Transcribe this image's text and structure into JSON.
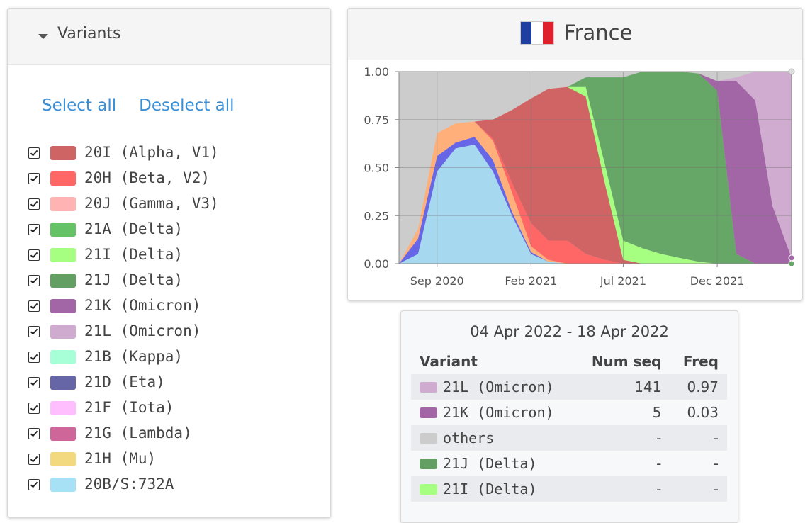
{
  "variants_panel": {
    "title": "Variants",
    "select_all": "Select all",
    "deselect_all": "Deselect all",
    "items": [
      {
        "label": "20I (Alpha, V1)",
        "color": "#cf6464",
        "checked": true
      },
      {
        "label": "20H (Beta, V2)",
        "color": "#ff6666",
        "checked": true
      },
      {
        "label": "20J (Gamma, V3)",
        "color": "#ffb3b3",
        "checked": true
      },
      {
        "label": "21A (Delta)",
        "color": "#66c266",
        "checked": true
      },
      {
        "label": "21I (Delta)",
        "color": "#a6ff80",
        "checked": true
      },
      {
        "label": "21J (Delta)",
        "color": "#639f63",
        "checked": true
      },
      {
        "label": "21K (Omicron)",
        "color": "#a266a6",
        "checked": true
      },
      {
        "label": "21L (Omicron)",
        "color": "#cfabcf",
        "checked": true
      },
      {
        "label": "21B (Kappa)",
        "color": "#a6ffd6",
        "checked": true
      },
      {
        "label": "21D (Eta)",
        "color": "#6666a6",
        "checked": true
      },
      {
        "label": "21F (Iota)",
        "color": "#ffbfff",
        "checked": true
      },
      {
        "label": "21G (Lambda)",
        "color": "#cf6699",
        "checked": true
      },
      {
        "label": "21H (Mu)",
        "color": "#f2d980",
        "checked": true
      },
      {
        "label": "20B/S:732A",
        "color": "#a6e1f5",
        "checked": true
      }
    ]
  },
  "chart_panel": {
    "country": "France",
    "flag_colors": [
      "#1f3fa0",
      "#ffffff",
      "#e0202a"
    ]
  },
  "chart_data": {
    "type": "area",
    "stacked": true,
    "normalized": true,
    "x_dates": [
      "2020-07-01",
      "2020-08-01",
      "2020-09-01",
      "2020-10-01",
      "2020-11-01",
      "2020-12-01",
      "2021-01-01",
      "2021-02-01",
      "2021-03-01",
      "2021-04-01",
      "2021-05-01",
      "2021-06-01",
      "2021-07-01",
      "2021-08-01",
      "2021-09-01",
      "2021-10-01",
      "2021-11-01",
      "2021-12-01",
      "2022-01-01",
      "2022-02-01",
      "2022-03-01",
      "2022-04-01"
    ],
    "x_ticks": [
      "Sep 2020",
      "Feb 2021",
      "Jul 2021",
      "Dec 2021"
    ],
    "y_ticks": [
      "0.00",
      "0.25",
      "0.50",
      "0.75",
      "1.00"
    ],
    "ylim": [
      0,
      1
    ],
    "grid": true,
    "background_color": "#cccccc",
    "series": [
      {
        "name": "20B/S:732A",
        "color": "#a6d8f0",
        "values": [
          0.0,
          0.05,
          0.48,
          0.6,
          0.62,
          0.48,
          0.25,
          0.05,
          0.01,
          0,
          0,
          0,
          0,
          0,
          0,
          0,
          0,
          0,
          0,
          0,
          0,
          0
        ]
      },
      {
        "name": "21D (Eta)",
        "color": "#6666e6",
        "values": [
          0.0,
          0.08,
          0.08,
          0.03,
          0.04,
          0.06,
          0.02,
          0.01,
          0,
          0,
          0,
          0,
          0,
          0,
          0,
          0,
          0,
          0,
          0,
          0,
          0,
          0
        ]
      },
      {
        "name": "20J (Gamma, V3)",
        "color": "#ffb07a",
        "values": [
          0.0,
          0.05,
          0.12,
          0.1,
          0.08,
          0.1,
          0.1,
          0.03,
          0.01,
          0,
          0,
          0,
          0,
          0,
          0,
          0,
          0,
          0,
          0,
          0,
          0,
          0
        ]
      },
      {
        "name": "20H (Beta, V2)",
        "color": "#ff6666",
        "values": [
          0,
          0,
          0,
          0,
          0,
          0.01,
          0.05,
          0.12,
          0.1,
          0.12,
          0.05,
          0.02,
          0,
          0,
          0,
          0,
          0,
          0,
          0,
          0,
          0,
          0
        ]
      },
      {
        "name": "20I (Alpha, V1)",
        "color": "#d06464",
        "values": [
          0,
          0,
          0,
          0,
          0,
          0.1,
          0.38,
          0.65,
          0.79,
          0.8,
          0.82,
          0.4,
          0.02,
          0,
          0,
          0,
          0,
          0,
          0,
          0,
          0,
          0
        ]
      },
      {
        "name": "21I (Delta)",
        "color": "#a6ff80",
        "values": [
          0,
          0,
          0,
          0,
          0,
          0,
          0,
          0,
          0,
          0,
          0.05,
          0.1,
          0.1,
          0.08,
          0.05,
          0.03,
          0.01,
          0,
          0,
          0,
          0,
          0
        ]
      },
      {
        "name": "21J (Delta)",
        "color": "#66a666",
        "values": [
          0,
          0,
          0,
          0,
          0,
          0,
          0,
          0,
          0,
          0,
          0.05,
          0.45,
          0.85,
          0.92,
          0.95,
          0.97,
          0.98,
          0.9,
          0.05,
          0,
          0,
          0
        ]
      },
      {
        "name": "21K (Omicron)",
        "color": "#a266a6",
        "values": [
          0,
          0,
          0,
          0,
          0,
          0,
          0,
          0,
          0,
          0,
          0,
          0,
          0,
          0,
          0,
          0,
          0,
          0.05,
          0.9,
          0.85,
          0.3,
          0.03
        ]
      },
      {
        "name": "21L (Omicron)",
        "color": "#d0acd0",
        "values": [
          0,
          0,
          0,
          0,
          0,
          0,
          0,
          0,
          0,
          0,
          0,
          0,
          0,
          0,
          0,
          0,
          0,
          0,
          0.02,
          0.15,
          0.7,
          0.97
        ]
      }
    ]
  },
  "table_panel": {
    "title": "04 Apr 2022 - 18 Apr 2022",
    "headers": {
      "variant": "Variant",
      "num_seq": "Num seq",
      "freq": "Freq"
    },
    "rows": [
      {
        "label": "21L (Omicron)",
        "color": "#cfabcf",
        "num_seq": "141",
        "freq": "0.97"
      },
      {
        "label": "21K (Omicron)",
        "color": "#a266a6",
        "num_seq": "5",
        "freq": "0.03"
      },
      {
        "label": "others",
        "color": "#cccccc",
        "num_seq": "-",
        "freq": "-"
      },
      {
        "label": "21J (Delta)",
        "color": "#639f63",
        "num_seq": "-",
        "freq": "-"
      },
      {
        "label": "21I (Delta)",
        "color": "#a6ff80",
        "num_seq": "-",
        "freq": "-"
      }
    ]
  }
}
